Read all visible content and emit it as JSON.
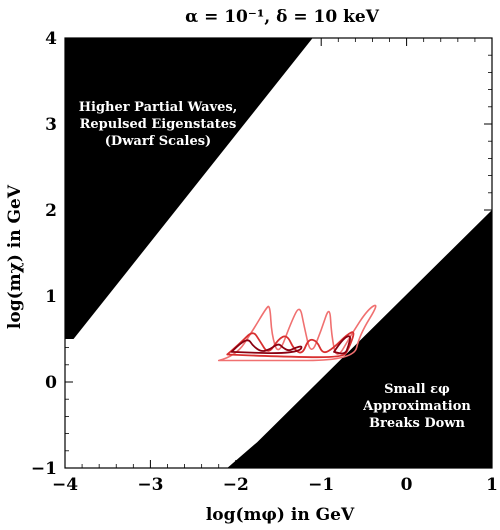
{
  "chart_data": {
    "type": "region-contour",
    "title": "α = 10⁻¹,  δ = 10 keV",
    "xlabel": "log(mφ) in GeV",
    "ylabel": "log(mχ) in GeV",
    "xlim": [
      -4,
      1
    ],
    "ylim": [
      -1,
      4
    ],
    "x_ticks": [
      -4,
      -3,
      -2,
      -1,
      0,
      1
    ],
    "y_ticks": [
      -1,
      0,
      1,
      2,
      3,
      4
    ],
    "x_tick_labels": [
      "−4",
      "−3",
      "−2",
      "−1",
      "0",
      "1"
    ],
    "y_tick_labels": [
      "−1",
      "0",
      "1",
      "2",
      "3",
      "4"
    ],
    "grid": false,
    "colors": {
      "excluded_region": "#000000",
      "contour_light": "#f07070",
      "contour_medium": "#d83030",
      "contour_dark": "#8a0010"
    },
    "regions": [
      {
        "name": "upper-left-excluded",
        "label_lines": [
          "Higher Partial Waves,",
          "Repulsed Eigenstates",
          "(Dwarf Scales)"
        ],
        "polygon": [
          [
            -4,
            4
          ],
          [
            -1.1,
            4
          ],
          [
            -3.9,
            0.5
          ],
          [
            -4,
            0.5
          ]
        ]
      },
      {
        "name": "lower-right-excluded",
        "label_lines": [
          "Small εφ",
          "Approximation",
          "Breaks Down"
        ],
        "polygon": [
          [
            1,
            2.0
          ],
          [
            1,
            -1
          ],
          [
            -2.1,
            -1
          ],
          [
            -1.75,
            -0.7
          ]
        ]
      }
    ],
    "contours": [
      {
        "level": "outer",
        "color_key": "contour_light",
        "points": [
          [
            -2.2,
            0.25
          ],
          [
            -2.0,
            0.3
          ],
          [
            -1.8,
            0.6
          ],
          [
            -1.65,
            0.85
          ],
          [
            -1.6,
            0.9
          ],
          [
            -1.58,
            0.55
          ],
          [
            -1.5,
            0.3
          ],
          [
            -1.35,
            0.7
          ],
          [
            -1.25,
            0.9
          ],
          [
            -1.2,
            0.65
          ],
          [
            -1.12,
            0.3
          ],
          [
            -1.0,
            0.6
          ],
          [
            -0.9,
            0.9
          ],
          [
            -0.88,
            0.55
          ],
          [
            -0.82,
            0.25
          ],
          [
            -0.65,
            0.55
          ],
          [
            -0.45,
            0.85
          ],
          [
            -0.32,
            0.92
          ],
          [
            -0.55,
            0.55
          ],
          [
            -0.62,
            0.25
          ],
          [
            -1.7,
            0.25
          ],
          [
            -2.2,
            0.25
          ]
        ]
      },
      {
        "level": "middle",
        "color_key": "contour_medium",
        "points": [
          [
            -2.1,
            0.32
          ],
          [
            -1.95,
            0.45
          ],
          [
            -1.8,
            0.6
          ],
          [
            -1.72,
            0.48
          ],
          [
            -1.62,
            0.32
          ],
          [
            -1.5,
            0.5
          ],
          [
            -1.4,
            0.55
          ],
          [
            -1.32,
            0.38
          ],
          [
            -1.22,
            0.32
          ],
          [
            -1.15,
            0.5
          ],
          [
            -1.05,
            0.48
          ],
          [
            -0.98,
            0.32
          ],
          [
            -0.85,
            0.4
          ],
          [
            -0.7,
            0.55
          ],
          [
            -0.6,
            0.6
          ],
          [
            -0.68,
            0.38
          ],
          [
            -0.75,
            0.28
          ],
          [
            -1.6,
            0.3
          ],
          [
            -2.1,
            0.32
          ]
        ]
      },
      {
        "level": "inner",
        "color_key": "contour_dark",
        "points": [
          [
            -2.05,
            0.35
          ],
          [
            -1.95,
            0.45
          ],
          [
            -1.85,
            0.5
          ],
          [
            -1.8,
            0.42
          ],
          [
            -1.7,
            0.35
          ],
          [
            -1.6,
            0.38
          ],
          [
            -1.5,
            0.45
          ],
          [
            -1.45,
            0.4
          ],
          [
            -1.38,
            0.36
          ],
          [
            -1.3,
            0.4
          ],
          [
            -1.22,
            0.42
          ],
          [
            -1.25,
            0.36
          ],
          [
            -1.5,
            0.33
          ],
          [
            -2.05,
            0.35
          ]
        ]
      },
      {
        "level": "inner-right",
        "color_key": "contour_dark",
        "points": [
          [
            -0.85,
            0.35
          ],
          [
            -0.75,
            0.5
          ],
          [
            -0.65,
            0.55
          ],
          [
            -0.68,
            0.42
          ],
          [
            -0.72,
            0.32
          ],
          [
            -0.85,
            0.35
          ]
        ]
      }
    ]
  }
}
